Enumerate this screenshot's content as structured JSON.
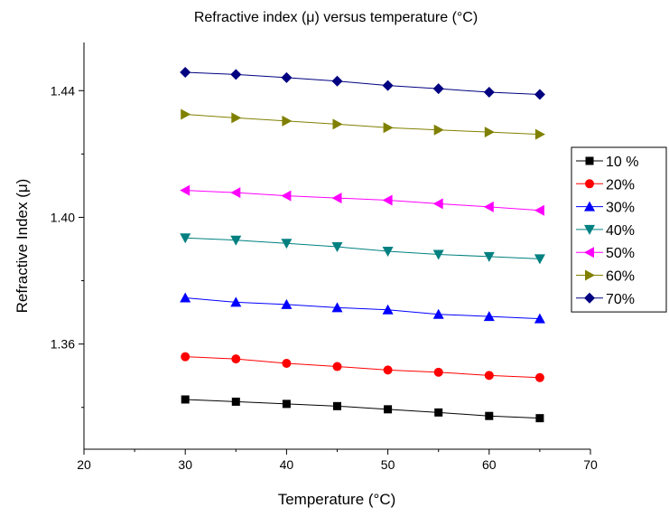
{
  "chart_data": {
    "type": "line",
    "title": "Refractive index (μ) versus temperature (°C)",
    "xlabel": "Temperature (°C)",
    "ylabel": "Refractive Index (μ)",
    "xlim": [
      20,
      70
    ],
    "ylim": [
      1.3268,
      1.4552
    ],
    "x_ticks": [
      20,
      30,
      40,
      50,
      60,
      70
    ],
    "x_tick_labels": [
      "20",
      "30",
      "40",
      "50",
      "60",
      "70"
    ],
    "y_ticks": [
      1.36,
      1.4,
      1.44
    ],
    "y_tick_labels": [
      "1.36",
      "1.40",
      "1.44"
    ],
    "x": [
      30,
      35,
      40,
      45,
      50,
      55,
      60,
      65
    ],
    "grid": false,
    "legend_position": "right",
    "series": [
      {
        "name": "10 %",
        "marker": "square",
        "color": "#000000",
        "values": [
          1.3425,
          1.3418,
          1.3411,
          1.3404,
          1.3394,
          1.3384,
          1.3373,
          1.3366
        ]
      },
      {
        "name": "20%",
        "marker": "circle",
        "color": "#ff0000",
        "values": [
          1.356,
          1.3553,
          1.3539,
          1.3529,
          1.3518,
          1.3511,
          1.3501,
          1.3494
        ]
      },
      {
        "name": "30%",
        "marker": "triangle-up",
        "color": "#0000ff",
        "values": [
          1.3746,
          1.3732,
          1.3725,
          1.3715,
          1.3708,
          1.3694,
          1.3687,
          1.368
        ]
      },
      {
        "name": "40%",
        "marker": "triangle-down",
        "color": "#008080",
        "values": [
          1.3935,
          1.3928,
          1.3918,
          1.3907,
          1.3893,
          1.3883,
          1.3876,
          1.3869
        ]
      },
      {
        "name": "50%",
        "marker": "triangle-left",
        "color": "#ff00ff",
        "values": [
          1.4085,
          1.4078,
          1.4068,
          1.4061,
          1.4054,
          1.4043,
          1.4033,
          1.4022
        ]
      },
      {
        "name": "60%",
        "marker": "triangle-right",
        "color": "#808000",
        "values": [
          1.4325,
          1.4314,
          1.4304,
          1.4294,
          1.4283,
          1.4276,
          1.4269,
          1.4262
        ]
      },
      {
        "name": "70%",
        "marker": "diamond",
        "color": "#000080",
        "values": [
          1.4458,
          1.4451,
          1.4441,
          1.443,
          1.4416,
          1.4406,
          1.4395,
          1.4388
        ]
      }
    ]
  }
}
